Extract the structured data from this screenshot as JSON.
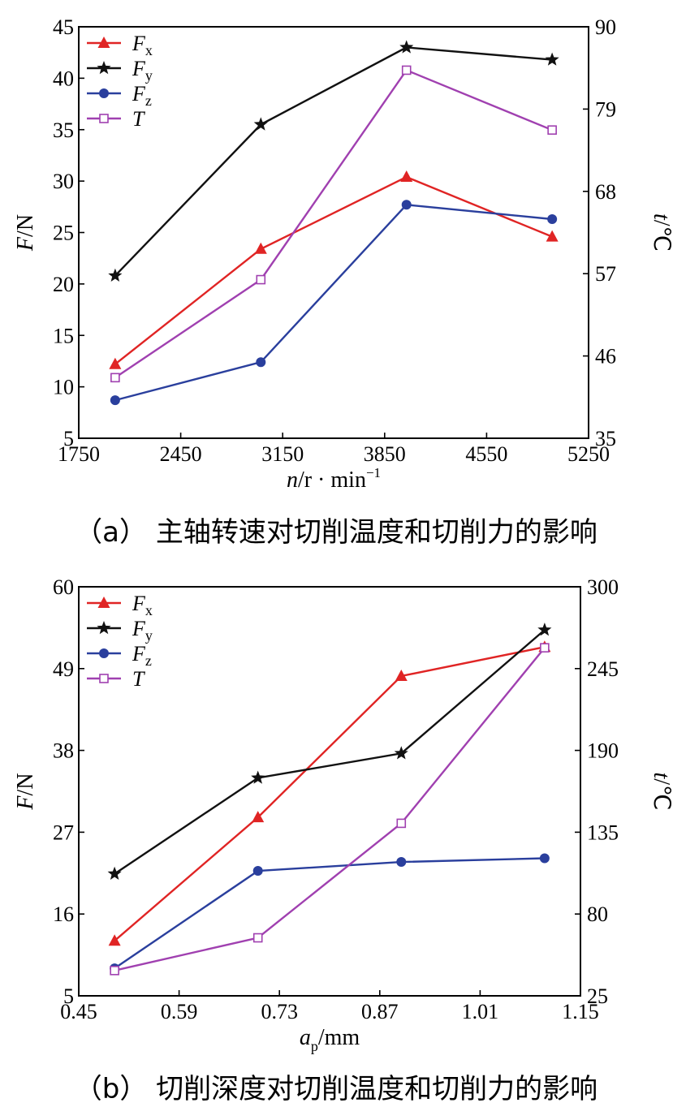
{
  "chart_data": [
    {
      "type": "line",
      "caption": "（a） 主轴转速对切削温度和切削力的影响",
      "xlabel_main": "n",
      "xlabel_unit": "/r · min",
      "xlabel_sup": "−1",
      "ylabel_left_main": "F",
      "ylabel_left_unit": "/N",
      "ylabel_right_main": "t",
      "ylabel_right_unit": "/℃",
      "xlim": [
        1750,
        5250
      ],
      "ylim_left": [
        5,
        45
      ],
      "ylim_right": [
        35,
        90
      ],
      "xticks": [
        1750,
        2450,
        3150,
        3850,
        4550,
        5250
      ],
      "yticks_left": [
        5,
        10,
        15,
        20,
        25,
        30,
        35,
        40,
        45
      ],
      "yticks_right": [
        35,
        46,
        57,
        68,
        79,
        90
      ],
      "legend_position": "top-left",
      "series": [
        {
          "name": "F",
          "sub": "x",
          "color": "#e02424",
          "marker": "triangle",
          "axis": "left",
          "x": [
            2000,
            3000,
            4000,
            5000
          ],
          "y": [
            12.2,
            23.4,
            30.4,
            24.6
          ]
        },
        {
          "name": "F",
          "sub": "y",
          "color": "#111111",
          "marker": "star",
          "axis": "left",
          "x": [
            2000,
            3000,
            4000,
            5000
          ],
          "y": [
            20.8,
            35.5,
            43.0,
            41.8
          ]
        },
        {
          "name": "F",
          "sub": "z",
          "color": "#2a3f9d",
          "marker": "circle",
          "axis": "left",
          "x": [
            2000,
            3000,
            4000,
            5000
          ],
          "y": [
            8.7,
            12.4,
            27.7,
            26.3
          ]
        },
        {
          "name": "T",
          "sub": "",
          "color": "#a040b0",
          "marker": "square",
          "axis": "right",
          "x": [
            2000,
            3000,
            4000,
            5000
          ],
          "y": [
            43.1,
            56.2,
            84.2,
            76.2
          ]
        }
      ]
    },
    {
      "type": "line",
      "caption": "（b） 切削深度对切削温度和切削力的影响",
      "xlabel_main": "a",
      "xlabel_sub": "p",
      "xlabel_unit": "/mm",
      "ylabel_left_main": "F",
      "ylabel_left_unit": "/N",
      "ylabel_right_main": "t",
      "ylabel_right_unit": "/℃",
      "xlim": [
        0.45,
        1.15
      ],
      "ylim_left": [
        5,
        60
      ],
      "ylim_right": [
        25,
        300
      ],
      "xticks": [
        "0.45",
        "0.59",
        "0.73",
        "0.87",
        "1.01",
        "1.15"
      ],
      "yticks_left": [
        5,
        16,
        27,
        38,
        49,
        60
      ],
      "yticks_right": [
        25,
        80,
        135,
        190,
        245,
        300
      ],
      "legend_position": "top-left",
      "series": [
        {
          "name": "F",
          "sub": "x",
          "color": "#e02424",
          "marker": "triangle",
          "axis": "left",
          "x": [
            0.5,
            0.7,
            0.9,
            1.1
          ],
          "y": [
            12.4,
            29.0,
            48.0,
            51.9
          ]
        },
        {
          "name": "F",
          "sub": "y",
          "color": "#111111",
          "marker": "star",
          "axis": "left",
          "x": [
            0.5,
            0.7,
            0.9,
            1.1
          ],
          "y": [
            21.4,
            34.3,
            37.6,
            54.2
          ]
        },
        {
          "name": "F",
          "sub": "z",
          "color": "#2a3f9d",
          "marker": "circle",
          "axis": "left",
          "x": [
            0.5,
            0.7,
            0.9,
            1.1
          ],
          "y": [
            8.7,
            21.8,
            23.0,
            23.5
          ]
        },
        {
          "name": "T",
          "sub": "",
          "color": "#a040b0",
          "marker": "square",
          "axis": "right",
          "x": [
            0.5,
            0.7,
            0.9,
            1.1
          ],
          "y": [
            42,
            64,
            141,
            259
          ]
        }
      ]
    }
  ]
}
